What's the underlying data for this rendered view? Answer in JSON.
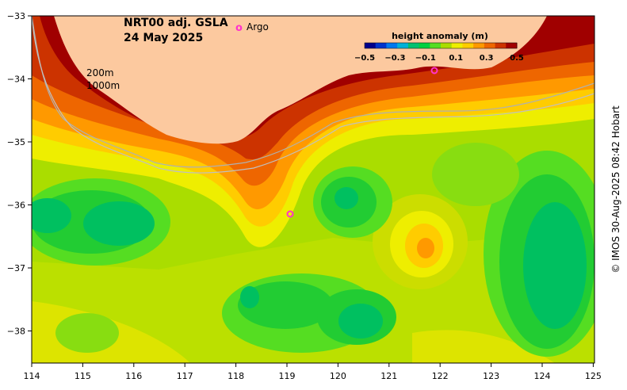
{
  "title": {
    "line1": "NRT00 adj. GSLA",
    "line2": "24 May 2025"
  },
  "legend": {
    "argo_symbol": "o",
    "argo_label": "Argo"
  },
  "isobaths": {
    "shallow": "200m",
    "deep": "1000m"
  },
  "colorbar": {
    "title": "height anomaly (m)",
    "ticks": [
      "−0.5",
      "−0.3",
      "−0.1",
      "0.1",
      "0.3",
      "0.5"
    ],
    "colors": [
      "#00008b",
      "#0033cc",
      "#0077ee",
      "#00b0d8",
      "#00c070",
      "#00d040",
      "#55dd22",
      "#aadd00",
      "#eeee00",
      "#ffcc00",
      "#ff9900",
      "#ee6600",
      "#cc3300",
      "#a00000"
    ]
  },
  "axes": {
    "x_labels": [
      "114",
      "115",
      "116",
      "117",
      "118",
      "119",
      "120",
      "121",
      "122",
      "123",
      "124",
      "125"
    ],
    "y_labels": [
      "−33",
      "−34",
      "−35",
      "−36",
      "−37",
      "−38"
    ]
  },
  "credit": "© IMOS 30-Aug-2025 08:42 Hobart",
  "colors": {
    "land": "#fcc99f",
    "argo": "#ff33cc",
    "isobath": "#b0b0b0"
  }
}
